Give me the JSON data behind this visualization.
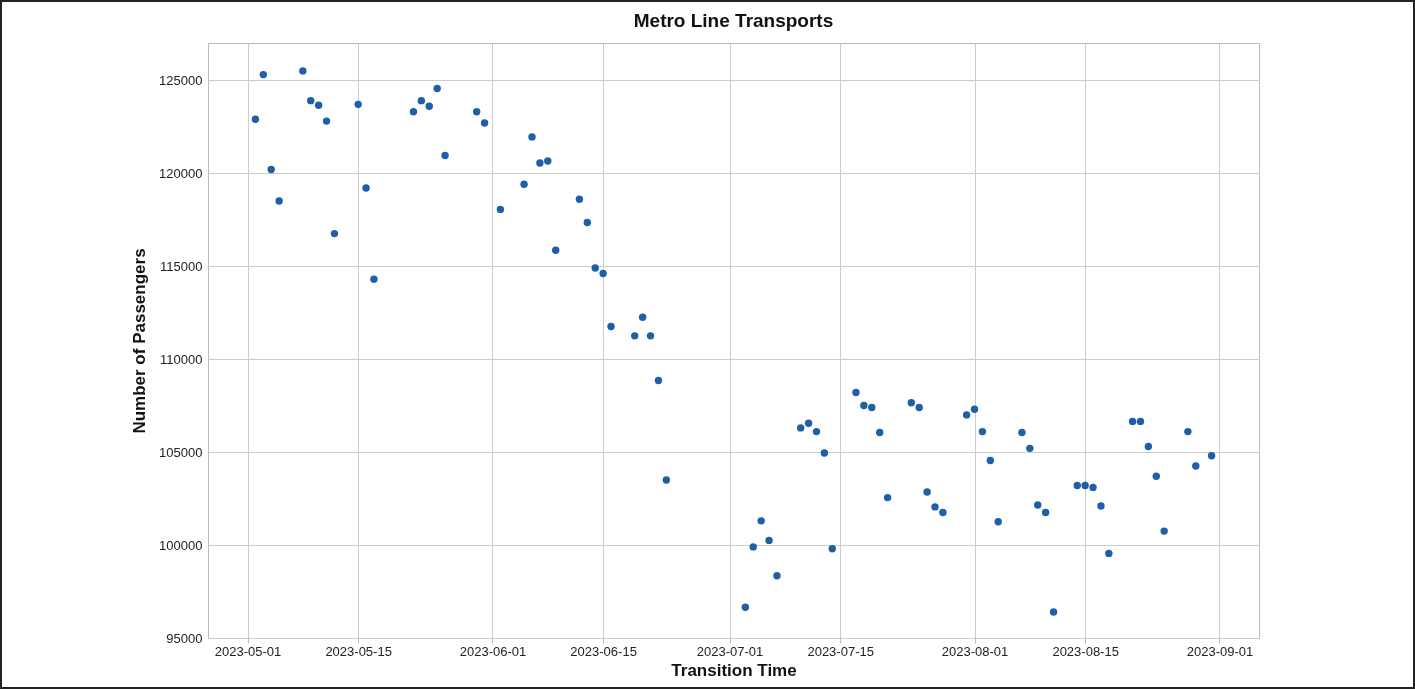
{
  "chart_data": {
    "type": "scatter",
    "title": "Metro Line Transports",
    "xlabel": "Transition Time",
    "ylabel": "Number of Passengers",
    "xlim": [
      "2023-04-26",
      "2023-09-06"
    ],
    "xticks": [
      "2023-05-01",
      "2023-05-15",
      "2023-06-01",
      "2023-06-15",
      "2023-07-01",
      "2023-07-15",
      "2023-08-01",
      "2023-08-15",
      "2023-09-01"
    ],
    "ylim": [
      95000,
      127000
    ],
    "yticks": [
      95000,
      100000,
      105000,
      110000,
      115000,
      120000,
      125000
    ],
    "grid": true,
    "marker": "circle",
    "x": [
      "2023-05-02",
      "2023-05-03",
      "2023-05-04",
      "2023-05-05",
      "2023-05-08",
      "2023-05-09",
      "2023-05-10",
      "2023-05-11",
      "2023-05-12",
      "2023-05-15",
      "2023-05-16",
      "2023-05-17",
      "2023-05-22",
      "2023-05-23",
      "2023-05-24",
      "2023-05-25",
      "2023-05-26",
      "2023-05-30",
      "2023-05-31",
      "2023-06-02",
      "2023-06-05",
      "2023-06-06",
      "2023-06-07",
      "2023-06-08",
      "2023-06-09",
      "2023-06-12",
      "2023-06-13",
      "2023-06-14",
      "2023-06-15",
      "2023-06-16",
      "2023-06-19",
      "2023-06-20",
      "2023-06-21",
      "2023-06-22",
      "2023-06-23",
      "2023-07-03",
      "2023-07-04",
      "2023-07-05",
      "2023-07-06",
      "2023-07-07",
      "2023-07-10",
      "2023-07-11",
      "2023-07-12",
      "2023-07-13",
      "2023-07-14",
      "2023-07-17",
      "2023-07-18",
      "2023-07-19",
      "2023-07-20",
      "2023-07-21",
      "2023-07-24",
      "2023-07-25",
      "2023-07-26",
      "2023-07-27",
      "2023-07-28",
      "2023-07-31",
      "2023-08-01",
      "2023-08-02",
      "2023-08-03",
      "2023-08-04",
      "2023-08-07",
      "2023-08-08",
      "2023-08-09",
      "2023-08-10",
      "2023-08-11",
      "2023-08-14",
      "2023-08-15",
      "2023-08-16",
      "2023-08-17",
      "2023-08-18",
      "2023-08-21",
      "2023-08-22",
      "2023-08-23",
      "2023-08-24",
      "2023-08-25",
      "2023-08-28",
      "2023-08-29",
      "2023-08-31"
    ],
    "series": [
      {
        "color": "#1f5fa8",
        "values": [
          122900,
          125300,
          120200,
          118500,
          125500,
          123900,
          123650,
          122800,
          116750,
          123700,
          119200,
          114300,
          123300,
          123900,
          123600,
          124550,
          120950,
          123300,
          122700,
          118050,
          119400,
          121950,
          120550,
          120650,
          115850,
          118600,
          117350,
          114900,
          114600,
          111750,
          111250,
          112250,
          111250,
          108850,
          103500,
          96650,
          99900,
          101300,
          100250,
          98350,
          106300,
          106550,
          106100,
          104950,
          99800,
          108200,
          107500,
          107400,
          106050,
          102550,
          107650,
          107400,
          102850,
          102050,
          101750,
          107000,
          107300,
          106100,
          104550,
          101250,
          106050,
          105200,
          102150,
          101750,
          96400,
          103200,
          103200,
          103100,
          102100,
          99550,
          106650,
          106650,
          105300,
          103700,
          100750,
          106100,
          104250,
          104800
        ]
      }
    ]
  }
}
